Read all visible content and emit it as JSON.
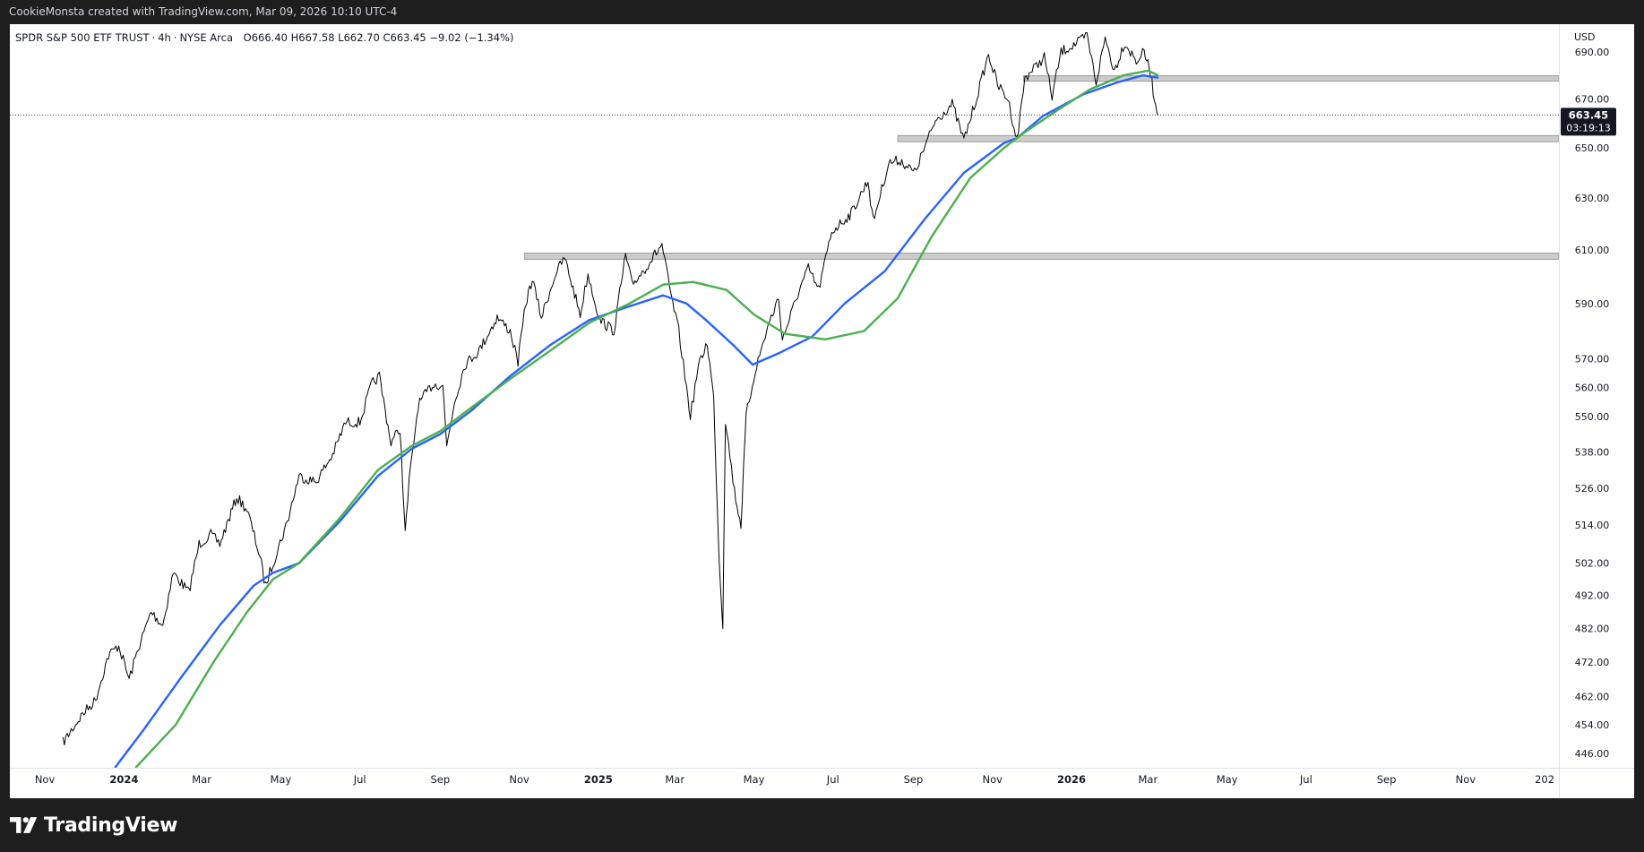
{
  "header": {
    "text": "CookieMonsta created with TradingView.com, Mar 09, 2026 10:10 UTC-4"
  },
  "legend": {
    "symbol": "SPDR S&P 500 ETF TRUST",
    "interval": "4h",
    "exchange": "NYSE Arca",
    "open": "O666.40",
    "high": "H667.58",
    "low": "L662.70",
    "close": "C663.45",
    "change": "−9.02 (−1.34%)"
  },
  "footer": {
    "brand": "TradingView"
  },
  "colors": {
    "background": "#1e1e1e",
    "chart_bg": "#ffffff",
    "candles": "#000000",
    "ma_blue": "#2962ff",
    "ma_green": "#4caf50",
    "zone": "#cccccc",
    "price_tag": "#131722"
  },
  "chart_data": {
    "type": "line",
    "title": "",
    "currency_label": "USD",
    "y_scale": "log",
    "ylim": [
      442,
      702
    ],
    "y_ticks": [
      "690.00",
      "670.00",
      "650.00",
      "630.00",
      "610.00",
      "590.00",
      "570.00",
      "560.00",
      "550.00",
      "538.00",
      "526.00",
      "514.00",
      "502.00",
      "492.00",
      "482.00",
      "472.00",
      "462.00",
      "454.00",
      "446.00"
    ],
    "x_ticks": [
      {
        "label": "Nov",
        "date": "2023-11-01",
        "bold": false
      },
      {
        "label": "2024",
        "date": "2024-01-01",
        "bold": true
      },
      {
        "label": "Mar",
        "date": "2024-03-01",
        "bold": false
      },
      {
        "label": "May",
        "date": "2024-05-01",
        "bold": false
      },
      {
        "label": "Jul",
        "date": "2024-07-01",
        "bold": false
      },
      {
        "label": "Sep",
        "date": "2024-09-01",
        "bold": false
      },
      {
        "label": "Nov",
        "date": "2024-11-01",
        "bold": false
      },
      {
        "label": "2025",
        "date": "2025-01-01",
        "bold": true
      },
      {
        "label": "Mar",
        "date": "2025-03-01",
        "bold": false
      },
      {
        "label": "May",
        "date": "2025-05-01",
        "bold": false
      },
      {
        "label": "Jul",
        "date": "2025-07-01",
        "bold": false
      },
      {
        "label": "Sep",
        "date": "2025-09-01",
        "bold": false
      },
      {
        "label": "Nov",
        "date": "2025-11-01",
        "bold": false
      },
      {
        "label": "2026",
        "date": "2026-01-01",
        "bold": true
      },
      {
        "label": "Mar",
        "date": "2026-03-01",
        "bold": false
      },
      {
        "label": "May",
        "date": "2026-05-01",
        "bold": false
      },
      {
        "label": "Jul",
        "date": "2026-07-01",
        "bold": false
      },
      {
        "label": "Sep",
        "date": "2026-09-01",
        "bold": false
      },
      {
        "label": "Nov",
        "date": "2026-11-01",
        "bold": false
      },
      {
        "label": "202",
        "date": "2027-01-01",
        "bold": false
      }
    ],
    "last_price": {
      "value": 663.45,
      "label": "663.45",
      "countdown": "03:19:13"
    },
    "price_series": {
      "name": "SPY 4h",
      "points": [
        [
          "2023-11-15",
          449
        ],
        [
          "2023-11-30",
          457
        ],
        [
          "2023-12-10",
          461
        ],
        [
          "2023-12-20",
          474
        ],
        [
          "2023-12-28",
          477
        ],
        [
          "2024-01-05",
          467
        ],
        [
          "2024-01-12",
          476
        ],
        [
          "2024-01-22",
          487
        ],
        [
          "2024-01-31",
          483
        ],
        [
          "2024-02-08",
          499
        ],
        [
          "2024-02-20",
          493
        ],
        [
          "2024-02-28",
          508
        ],
        [
          "2024-03-08",
          511
        ],
        [
          "2024-03-15",
          508
        ],
        [
          "2024-03-28",
          523
        ],
        [
          "2024-04-05",
          519
        ],
        [
          "2024-04-15",
          504
        ],
        [
          "2024-04-19",
          495
        ],
        [
          "2024-04-25",
          502
        ],
        [
          "2024-05-06",
          515
        ],
        [
          "2024-05-15",
          530
        ],
        [
          "2024-05-28",
          528
        ],
        [
          "2024-06-10",
          537
        ],
        [
          "2024-06-20",
          548
        ],
        [
          "2024-07-01",
          548
        ],
        [
          "2024-07-10",
          561
        ],
        [
          "2024-07-16",
          564
        ],
        [
          "2024-07-25",
          541
        ],
        [
          "2024-08-01",
          546
        ],
        [
          "2024-08-05",
          511
        ],
        [
          "2024-08-08",
          528
        ],
        [
          "2024-08-15",
          554
        ],
        [
          "2024-08-26",
          561
        ],
        [
          "2024-09-03",
          561
        ],
        [
          "2024-09-06",
          540
        ],
        [
          "2024-09-12",
          555
        ],
        [
          "2024-09-20",
          568
        ],
        [
          "2024-10-01",
          573
        ],
        [
          "2024-10-15",
          585
        ],
        [
          "2024-10-25",
          580
        ],
        [
          "2024-10-31",
          569
        ],
        [
          "2024-11-06",
          590
        ],
        [
          "2024-11-11",
          599
        ],
        [
          "2024-11-18",
          585
        ],
        [
          "2024-11-29",
          601
        ],
        [
          "2024-12-06",
          607
        ],
        [
          "2024-12-18",
          586
        ],
        [
          "2024-12-24",
          601
        ],
        [
          "2025-01-02",
          584
        ],
        [
          "2025-01-13",
          580
        ],
        [
          "2025-01-22",
          608
        ],
        [
          "2025-01-27",
          597
        ],
        [
          "2025-02-06",
          603
        ],
        [
          "2025-02-19",
          612
        ],
        [
          "2025-02-26",
          593
        ],
        [
          "2025-03-04",
          580
        ],
        [
          "2025-03-10",
          560
        ],
        [
          "2025-03-13",
          550
        ],
        [
          "2025-03-19",
          567
        ],
        [
          "2025-03-26",
          576
        ],
        [
          "2025-03-31",
          556
        ],
        [
          "2025-04-04",
          505
        ],
        [
          "2025-04-07",
          483
        ],
        [
          "2025-04-09",
          549
        ],
        [
          "2025-04-16",
          525
        ],
        [
          "2025-04-21",
          514
        ],
        [
          "2025-04-25",
          550
        ],
        [
          "2025-05-02",
          566
        ],
        [
          "2025-05-12",
          582
        ],
        [
          "2025-05-20",
          592
        ],
        [
          "2025-05-23",
          577
        ],
        [
          "2025-06-05",
          595
        ],
        [
          "2025-06-12",
          603
        ],
        [
          "2025-06-20",
          595
        ],
        [
          "2025-06-30",
          617
        ],
        [
          "2025-07-15",
          624
        ],
        [
          "2025-07-28",
          637
        ],
        [
          "2025-08-01",
          621
        ],
        [
          "2025-08-13",
          644
        ],
        [
          "2025-08-22",
          645
        ],
        [
          "2025-09-02",
          640
        ],
        [
          "2025-09-18",
          661
        ],
        [
          "2025-10-01",
          668
        ],
        [
          "2025-10-10",
          653
        ],
        [
          "2025-10-20",
          671
        ],
        [
          "2025-10-29",
          689
        ],
        [
          "2025-11-05",
          676
        ],
        [
          "2025-11-13",
          670
        ],
        [
          "2025-11-20",
          653
        ],
        [
          "2025-11-26",
          679
        ],
        [
          "2025-12-05",
          684
        ],
        [
          "2025-12-11",
          688
        ],
        [
          "2025-12-17",
          671
        ],
        [
          "2025-12-24",
          690
        ],
        [
          "2026-01-06",
          694
        ],
        [
          "2026-01-13",
          697
        ],
        [
          "2026-01-20",
          677
        ],
        [
          "2026-01-27",
          696
        ],
        [
          "2026-02-03",
          682
        ],
        [
          "2026-02-11",
          694
        ],
        [
          "2026-02-20",
          686
        ],
        [
          "2026-02-26",
          690
        ],
        [
          "2026-03-03",
          681
        ],
        [
          "2026-03-06",
          670
        ],
        [
          "2026-03-09",
          663.45
        ]
      ]
    },
    "ma_series": [
      {
        "name": "MA 1 (blue)",
        "color": "#2962ff",
        "points": [
          [
            "2023-12-25",
            442
          ],
          [
            "2024-01-15",
            452
          ],
          [
            "2024-02-15",
            468
          ],
          [
            "2024-03-15",
            483
          ],
          [
            "2024-04-10",
            495
          ],
          [
            "2024-04-25",
            499
          ],
          [
            "2024-05-15",
            502
          ],
          [
            "2024-06-15",
            515
          ],
          [
            "2024-07-15",
            530
          ],
          [
            "2024-08-10",
            539
          ],
          [
            "2024-09-01",
            544
          ],
          [
            "2024-09-25",
            552
          ],
          [
            "2024-10-25",
            564
          ],
          [
            "2024-11-25",
            575
          ],
          [
            "2024-12-25",
            584
          ],
          [
            "2025-01-25",
            589
          ],
          [
            "2025-02-20",
            593
          ],
          [
            "2025-03-10",
            590
          ],
          [
            "2025-03-25",
            584
          ],
          [
            "2025-04-15",
            575
          ],
          [
            "2025-04-30",
            568
          ],
          [
            "2025-05-20",
            572
          ],
          [
            "2025-06-15",
            578
          ],
          [
            "2025-07-10",
            590
          ],
          [
            "2025-08-10",
            602
          ],
          [
            "2025-09-10",
            622
          ],
          [
            "2025-10-10",
            640
          ],
          [
            "2025-11-10",
            652
          ],
          [
            "2025-11-20",
            654
          ],
          [
            "2025-12-10",
            663
          ],
          [
            "2026-01-10",
            672
          ],
          [
            "2026-02-05",
            677
          ],
          [
            "2026-02-25",
            680
          ],
          [
            "2026-03-09",
            679
          ]
        ]
      },
      {
        "name": "MA 2 (green)",
        "color": "#4caf50",
        "points": [
          [
            "2024-01-10",
            442
          ],
          [
            "2024-02-10",
            454
          ],
          [
            "2024-03-10",
            472
          ],
          [
            "2024-04-05",
            487
          ],
          [
            "2024-04-25",
            497
          ],
          [
            "2024-05-15",
            502
          ],
          [
            "2024-06-15",
            516
          ],
          [
            "2024-07-15",
            532
          ],
          [
            "2024-08-10",
            540
          ],
          [
            "2024-09-01",
            545
          ],
          [
            "2024-09-25",
            553
          ],
          [
            "2024-10-25",
            563
          ],
          [
            "2024-11-25",
            573
          ],
          [
            "2024-12-25",
            583
          ],
          [
            "2025-01-25",
            590
          ],
          [
            "2025-02-20",
            597
          ],
          [
            "2025-03-15",
            598
          ],
          [
            "2025-04-10",
            595
          ],
          [
            "2025-05-01",
            586
          ],
          [
            "2025-05-25",
            579
          ],
          [
            "2025-06-25",
            577
          ],
          [
            "2025-07-25",
            580
          ],
          [
            "2025-08-20",
            592
          ],
          [
            "2025-09-15",
            615
          ],
          [
            "2025-10-15",
            638
          ],
          [
            "2025-11-10",
            650
          ],
          [
            "2025-11-25",
            656
          ],
          [
            "2025-12-20",
            665
          ],
          [
            "2026-01-15",
            674
          ],
          [
            "2026-02-10",
            680
          ],
          [
            "2026-03-01",
            682
          ],
          [
            "2026-03-09",
            680
          ]
        ]
      }
    ],
    "zones": [
      {
        "from": "2024-11-05",
        "low": 606.5,
        "high": 608.8
      },
      {
        "from": "2025-08-20",
        "low": 652.5,
        "high": 655.0
      },
      {
        "from": "2025-11-25",
        "low": 678.2,
        "high": 679.8
      }
    ]
  }
}
